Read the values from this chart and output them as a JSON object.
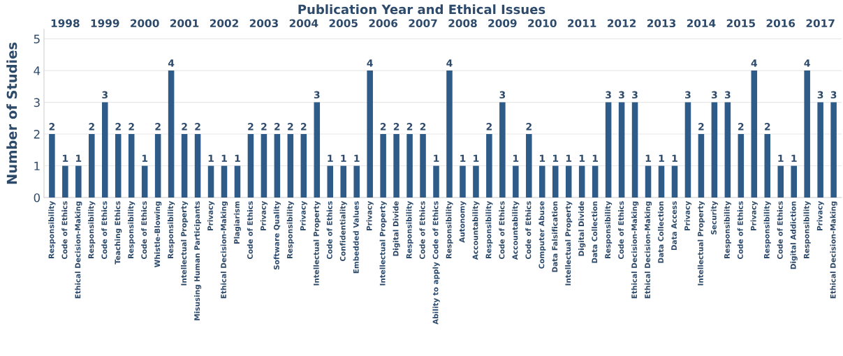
{
  "chart_data": {
    "type": "bar",
    "title": "Publication Year and Ethical Issues",
    "ylabel": "Number of Studies",
    "annotations": [
      "1998",
      "1999",
      "2000",
      "2001",
      "2002",
      "2003",
      "2004",
      "2005",
      "2006",
      "2007",
      "2008",
      "2009",
      "2010",
      "2011",
      "2012",
      "2013",
      "2014",
      "2015",
      "2016",
      "2017"
    ],
    "categories": [
      "Responsibility",
      "Code of Ethics",
      "Ethical Decision-Making",
      "Responsibility",
      "Code of Ethics",
      "Teaching Ethics",
      "Responsibility",
      "Code of Ethics",
      "Whistle-Blowing",
      "Responsibility",
      "Intellectual Property",
      "Misusing Human Participants",
      "Privacy",
      "Ethical Decision-Making",
      "Plagiarism",
      "Code of Ethics",
      "Privacy",
      "Software Quality",
      "Responsibility",
      "Privacy",
      "Intellectual Property",
      "Code of Ethics",
      "Confidentiality",
      "Embedded Values",
      "Privacy",
      "Intellectual Property",
      "Digital Divide",
      "Responsibility",
      "Code of Ethics",
      "Ability to apply Code of Ethics",
      "Responsibility",
      "Autonomy",
      "Accountability",
      "Responsibility",
      "Code of Ethics",
      "Accountability",
      "Code of Ethics",
      "Computer Abuse",
      "Data Falsification",
      "Intellectual Property",
      "Digital Divide",
      "Data Collection",
      "Responsibility",
      "Code of Ethics",
      "Ethical Decision-Making",
      "Ethical Decision-Making",
      "Data Collection",
      "Data Access",
      "Privacy",
      "Intellectual Property",
      "Security",
      "Responsibility",
      "Code of Ethics",
      "Privacy",
      "Responsibility",
      "Code of Ethics",
      "Digital Addiction",
      "Responsibility",
      "Privacy",
      "Ethical Decision-Making"
    ],
    "values": [
      2,
      1,
      1,
      2,
      3,
      2,
      2,
      1,
      2,
      4,
      2,
      2,
      1,
      1,
      1,
      2,
      2,
      2,
      2,
      2,
      3,
      1,
      1,
      1,
      4,
      2,
      2,
      2,
      2,
      1,
      4,
      1,
      1,
      2,
      3,
      1,
      2,
      1,
      1,
      1,
      1,
      1,
      3,
      3,
      3,
      1,
      1,
      1,
      3,
      2,
      3,
      3,
      2,
      4,
      2,
      1,
      1,
      4,
      3,
      3
    ],
    "color": "#2e5b88",
    "ylim": [
      0,
      5.3
    ],
    "yticks": [
      0,
      1,
      2,
      3,
      4,
      5
    ],
    "data_labels": true,
    "grid": "y"
  }
}
